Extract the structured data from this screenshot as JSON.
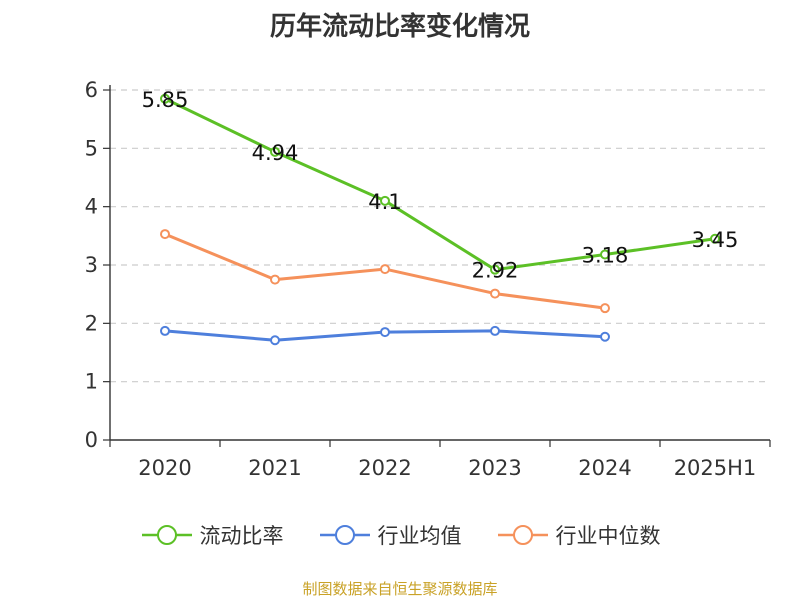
{
  "chart_data": {
    "type": "line",
    "title": "历年流动比率变化情况",
    "categories": [
      "2020",
      "2021",
      "2022",
      "2023",
      "2024",
      "2025H1"
    ],
    "ylim": [
      0,
      6
    ],
    "yticks": [
      "0",
      "1",
      "2",
      "3",
      "4",
      "5",
      "6"
    ],
    "grid": true,
    "legend_position": "bottom",
    "series": [
      {
        "name": "流动比率",
        "color": "#5cc026",
        "values": [
          5.85,
          4.94,
          4.1,
          2.92,
          3.18,
          3.45
        ],
        "labels": [
          "5.85",
          "4.94",
          "4.1",
          "2.92",
          "3.18",
          "3.45"
        ]
      },
      {
        "name": "行业均值",
        "color": "#4e7fdc",
        "values": [
          1.87,
          1.71,
          1.85,
          1.87,
          1.77,
          null
        ]
      },
      {
        "name": "行业中位数",
        "color": "#f5915b",
        "values": [
          3.53,
          2.75,
          2.93,
          2.51,
          2.26,
          null
        ]
      }
    ]
  },
  "source": "制图数据来自恒生聚源数据库"
}
